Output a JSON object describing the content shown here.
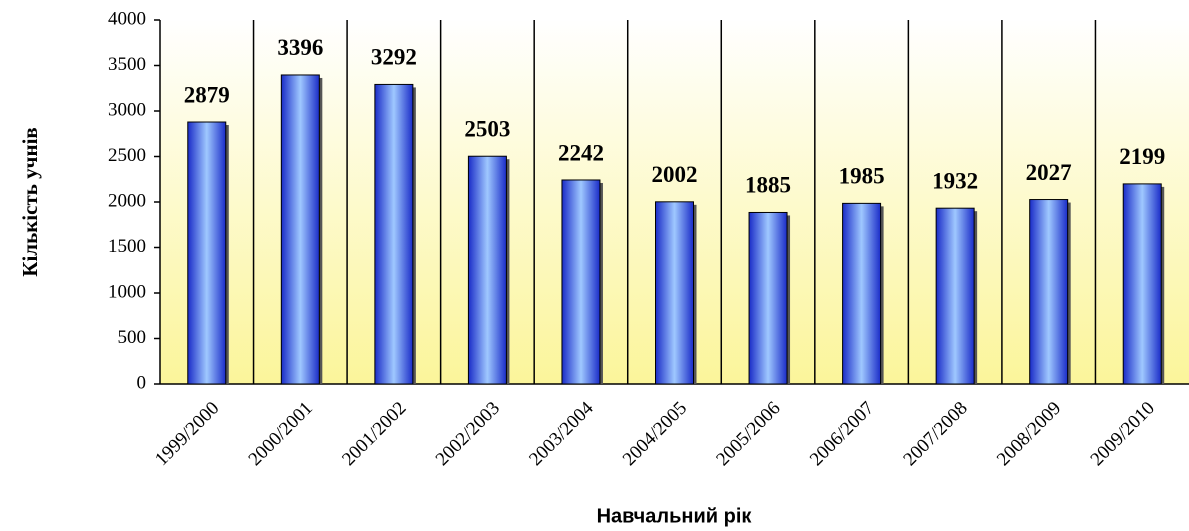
{
  "chart_data": {
    "type": "bar",
    "x_label": "Навчальний рік",
    "y_label": "Кількість учнів",
    "categories": [
      "1999/2000",
      "2000/2001",
      "2001/2002",
      "2002/2003",
      "2003/2004",
      "2004/2005",
      "2005/2006",
      "2006/2007",
      "2007/2008",
      "2008/2009",
      "2009/2010"
    ],
    "values": [
      2879,
      3396,
      3292,
      2503,
      2242,
      2002,
      1885,
      1985,
      1932,
      2027,
      2199
    ],
    "color": "#2a3fe0",
    "ylim": [
      0,
      4000
    ],
    "yticks": [
      0,
      500,
      1000,
      1500,
      2000,
      2500,
      3000,
      3500,
      4000
    ],
    "grid": false
  }
}
